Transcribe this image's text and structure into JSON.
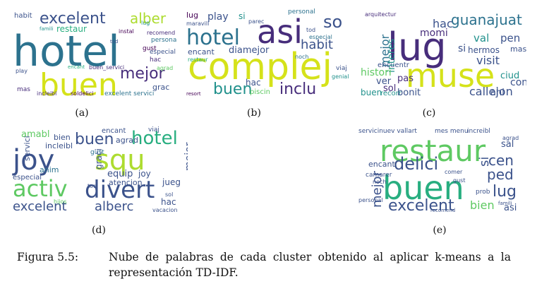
{
  "figure": {
    "caption_label": "Figura 5.5:",
    "caption_text": "Nube de palabras de cada cluster obtenido al aplicar k-means a la representación TD-IDF."
  },
  "palette": [
    "#440154",
    "#472d7b",
    "#3b528b",
    "#2c728e",
    "#21918c",
    "#28ae80",
    "#5ec962",
    "#addc30",
    "#d5e21a"
  ],
  "panels": [
    {
      "label": "(a)",
      "words": [
        {
          "t": "hotel",
          "c": "#2c728e",
          "f": "big"
        },
        {
          "t": "buen",
          "c": "#d5e21a",
          "f": "big"
        },
        {
          "t": "excelent",
          "c": "#3b528b"
        },
        {
          "t": "alber",
          "c": "#addc30"
        },
        {
          "t": "mejor",
          "c": "#472d7b"
        },
        {
          "t": "habit",
          "c": "#3b528b"
        },
        {
          "t": "restaur",
          "c": "#28ae80"
        },
        {
          "t": "famili",
          "c": "#21918c"
        },
        {
          "t": "instal",
          "c": "#440154"
        },
        {
          "t": "recomend",
          "c": "#472d7b"
        },
        {
          "t": "persona",
          "c": "#2c728e"
        },
        {
          "t": "especial",
          "c": "#3b528b"
        },
        {
          "t": "gust",
          "c": "#440154"
        },
        {
          "t": "hac",
          "c": "#472d7b"
        },
        {
          "t": "play",
          "c": "#3b528b"
        },
        {
          "t": "buen_servici",
          "c": "#472d7b"
        },
        {
          "t": "incleibl",
          "c": "#472d7b"
        },
        {
          "t": "soldelici",
          "c": "#440154"
        },
        {
          "t": "excelent servici",
          "c": "#2c728e"
        },
        {
          "t": "mas",
          "c": "#472d7b"
        },
        {
          "t": "tod",
          "c": "#3b528b"
        },
        {
          "t": "encant",
          "c": "#28ae80"
        },
        {
          "t": "agrad",
          "c": "#5ec962"
        },
        {
          "t": "grac",
          "c": "#3b528b"
        },
        {
          "t": "lug",
          "c": "#21918c"
        }
      ]
    },
    {
      "label": "(b)",
      "words": [
        {
          "t": "complej",
          "c": "#d5e21a",
          "f": "big"
        },
        {
          "t": "asi",
          "c": "#472d7b",
          "f": "big"
        },
        {
          "t": "hotel",
          "c": "#2c728e"
        },
        {
          "t": "buen",
          "c": "#21918c"
        },
        {
          "t": "inclu",
          "c": "#472d7b"
        },
        {
          "t": "habit",
          "c": "#3b528b"
        },
        {
          "t": "so",
          "c": "#3b528b"
        },
        {
          "t": "lug",
          "c": "#440154"
        },
        {
          "t": "play",
          "c": "#3b528b"
        },
        {
          "t": "si",
          "c": "#21918c"
        },
        {
          "t": "parec",
          "c": "#3b528b"
        },
        {
          "t": "personal",
          "c": "#2c728e"
        },
        {
          "t": "maravill",
          "c": "#3b528b"
        },
        {
          "t": "encant",
          "c": "#3b528b"
        },
        {
          "t": "diamejor",
          "c": "#3b528b"
        },
        {
          "t": "especial",
          "c": "#2c728e"
        },
        {
          "t": "tod",
          "c": "#3b528b"
        },
        {
          "t": "restaur",
          "c": "#28ae80"
        },
        {
          "t": "hac",
          "c": "#3b528b"
        },
        {
          "t": "noch",
          "c": "#2c728e"
        },
        {
          "t": "piscin",
          "c": "#5ec962"
        },
        {
          "t": "viaj",
          "c": "#3b528b"
        },
        {
          "t": "genial",
          "c": "#21918c"
        },
        {
          "t": "resort",
          "c": "#440154"
        }
      ]
    },
    {
      "label": "(c)",
      "words": [
        {
          "t": "lug",
          "c": "#472d7b",
          "f": "big"
        },
        {
          "t": "muse",
          "c": "#d5e21a",
          "f": "big"
        },
        {
          "t": "guanajuat",
          "c": "#2c728e"
        },
        {
          "t": "hac",
          "c": "#3b528b"
        },
        {
          "t": "momi",
          "c": "#472d7b"
        },
        {
          "t": "val",
          "c": "#21918c"
        },
        {
          "t": "pen",
          "c": "#3b528b"
        },
        {
          "t": "si",
          "c": "#3b528b"
        },
        {
          "t": "hermos",
          "c": "#3b528b"
        },
        {
          "t": "visit",
          "c": "#3b528b"
        },
        {
          "t": "mejor",
          "c": "#2c728e"
        },
        {
          "t": "interes",
          "c": "#21918c"
        },
        {
          "t": "histori",
          "c": "#5ec962"
        },
        {
          "t": "ver",
          "c": "#3b528b"
        },
        {
          "t": "pas",
          "c": "#472d7b"
        },
        {
          "t": "bonit",
          "c": "#3b528b"
        },
        {
          "t": "callejon",
          "c": "#3b528b"
        },
        {
          "t": "conoc",
          "c": "#3b528b"
        },
        {
          "t": "ciud",
          "c": "#21918c"
        },
        {
          "t": "ahi",
          "c": "#3b528b"
        },
        {
          "t": "sol",
          "c": "#472d7b"
        },
        {
          "t": "buen",
          "c": "#21918c"
        },
        {
          "t": "encuentr",
          "c": "#3b528b"
        },
        {
          "t": "arquitectur",
          "c": "#472d7b"
        },
        {
          "t": "mas",
          "c": "#3b528b"
        },
        {
          "t": "recorr",
          "c": "#21918c"
        }
      ]
    },
    {
      "label": "(d)",
      "words": [
        {
          "t": "joy",
          "c": "#3b528b",
          "f": "big"
        },
        {
          "t": "squ",
          "c": "#addc30",
          "f": "big"
        },
        {
          "t": "activ",
          "c": "#5ec962",
          "f": "big"
        },
        {
          "t": "divert",
          "c": "#3b528b",
          "f": "big"
        },
        {
          "t": "hotel",
          "c": "#28ae80"
        },
        {
          "t": "buen",
          "c": "#3b528b"
        },
        {
          "t": "excelent",
          "c": "#3b528b"
        },
        {
          "t": "alberc",
          "c": "#3b528b"
        },
        {
          "t": "amabl",
          "c": "#5ec962"
        },
        {
          "t": "bien",
          "c": "#3b528b"
        },
        {
          "t": "incleibl",
          "c": "#3b528b"
        },
        {
          "t": "gust",
          "c": "#2c728e"
        },
        {
          "t": "encant",
          "c": "#3b528b"
        },
        {
          "t": "agrad",
          "c": "#3b528b"
        },
        {
          "t": "viaj",
          "c": "#3b528b"
        },
        {
          "t": "servici",
          "c": "#3b528b"
        },
        {
          "t": "equip",
          "c": "#3b528b"
        },
        {
          "t": "joy",
          "c": "#3b528b"
        },
        {
          "t": "graci",
          "c": "#3b528b"
        },
        {
          "t": "mejor",
          "c": "#3b528b"
        },
        {
          "t": "anim",
          "c": "#2c728e"
        },
        {
          "t": "atencion",
          "c": "#3b528b"
        },
        {
          "t": "especial",
          "c": "#3b528b"
        },
        {
          "t": "jueg",
          "c": "#3b528b"
        },
        {
          "t": "hac",
          "c": "#3b528b"
        },
        {
          "t": "tod",
          "c": "#3b528b"
        },
        {
          "t": "vacacion",
          "c": "#3b528b"
        },
        {
          "t": "sol",
          "c": "#3b528b"
        },
        {
          "t": "hijos",
          "c": "#5ec962"
        }
      ]
    },
    {
      "label": "(e)",
      "words": [
        {
          "t": "restaur",
          "c": "#5ec962",
          "f": "big"
        },
        {
          "t": "buen",
          "c": "#28ae80",
          "f": "big"
        },
        {
          "t": "delici",
          "c": "#3b528b"
        },
        {
          "t": "excelent",
          "c": "#3b528b"
        },
        {
          "t": "mejor",
          "c": "#3b528b"
        },
        {
          "t": "cen",
          "c": "#3b528b"
        },
        {
          "t": "ped",
          "c": "#3b528b"
        },
        {
          "t": "lug",
          "c": "#3b528b"
        },
        {
          "t": "si",
          "c": "#3b528b"
        },
        {
          "t": "sal",
          "c": "#3b528b"
        },
        {
          "t": "bien",
          "c": "#5ec962"
        },
        {
          "t": "asi",
          "c": "#3b528b"
        },
        {
          "t": "encant",
          "c": "#3b528b"
        },
        {
          "t": "servicinuev vallart",
          "c": "#3b528b"
        },
        {
          "t": "mes menu",
          "c": "#3b528b"
        },
        {
          "t": "increibl",
          "c": "#3b528b"
        },
        {
          "t": "agrad",
          "c": "#3b528b"
        },
        {
          "t": "prob",
          "c": "#3b528b"
        },
        {
          "t": "personal",
          "c": "#3b528b"
        },
        {
          "t": "camarer",
          "c": "#3b528b"
        },
        {
          "t": "comer",
          "c": "#3b528b"
        },
        {
          "t": "famili",
          "c": "#3b528b"
        },
        {
          "t": "recomend",
          "c": "#3b528b"
        },
        {
          "t": "noch",
          "c": "#3b528b"
        },
        {
          "t": "gust",
          "c": "#3b528b"
        }
      ]
    }
  ]
}
